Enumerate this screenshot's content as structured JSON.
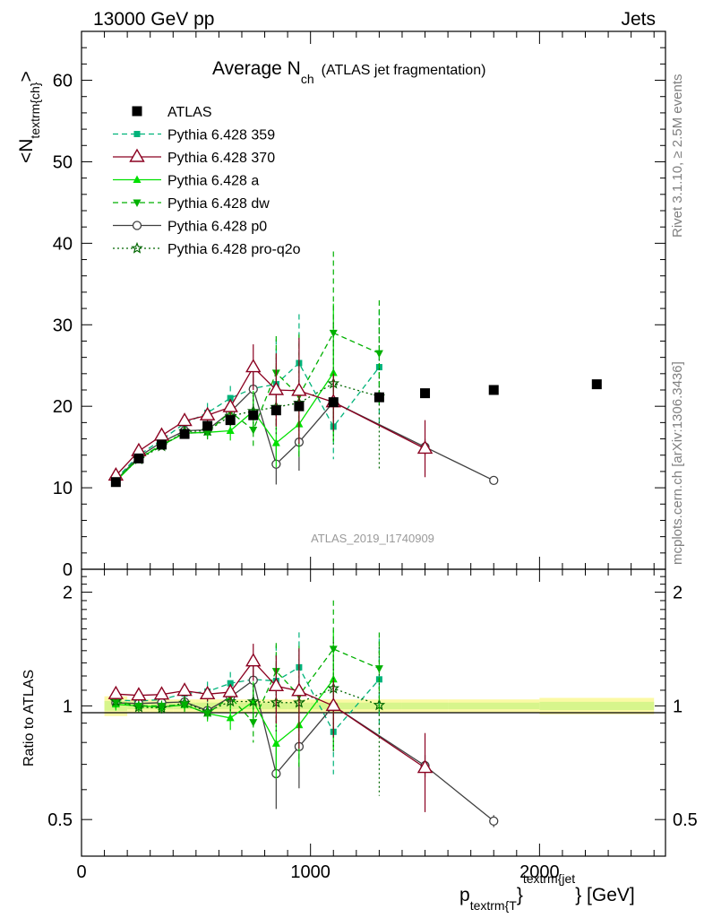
{
  "header": {
    "energy": "13000 GeV pp",
    "category": "Jets"
  },
  "side": {
    "rivet": "Rivet 3.1.10, ≥ 2.5M events",
    "mcplots": "mcplots.cern.ch [arXiv:1306.3436]"
  },
  "watermark": "ATLAS_2019_I1740909",
  "chart_data": [
    {
      "type": "scatter",
      "panel": "main",
      "title_main": "Average N",
      "title_sub": "ch",
      "title_paren": "(ATLAS jet fragmentation)",
      "ylabel_main": "<N",
      "ylabel_sub": "textrm{ch}",
      "ylabel_close": ">",
      "xlim": [
        0,
        2550
      ],
      "ylim": [
        0,
        66
      ],
      "yticks": [
        0,
        10,
        20,
        30,
        40,
        50,
        60
      ],
      "ytick_labels": [
        "0",
        "10",
        "20",
        "30",
        "40",
        "50",
        "60"
      ],
      "legend_position": "top-left",
      "series": [
        {
          "name": "ATLAS",
          "color": "#000000",
          "marker": "square",
          "line": "none",
          "x": [
            150,
            250,
            350,
            450,
            550,
            650,
            750,
            850,
            950,
            1100,
            1300,
            1500,
            1800,
            2250
          ],
          "y": [
            10.7,
            13.6,
            15.3,
            16.6,
            17.6,
            18.3,
            18.9,
            19.5,
            20.0,
            20.5,
            21.1,
            21.6,
            22.0,
            22.7
          ]
        },
        {
          "name": "Pythia 6.428 359",
          "color": "#00b37a",
          "marker": "square-small",
          "line": "dashed",
          "x": [
            150,
            250,
            350,
            450,
            550,
            650,
            750,
            850,
            950,
            1100,
            1300
          ],
          "y": [
            11.1,
            14.0,
            15.9,
            17.9,
            19.2,
            21.0,
            22.2,
            22.7,
            25.3,
            17.5,
            24.8
          ],
          "err": [
            0.5,
            0.5,
            0.6,
            0.8,
            1.2,
            1.5,
            2.5,
            5.5,
            6.0,
            4.0,
            7.0
          ]
        },
        {
          "name": "Pythia 6.428 370",
          "color": "#8b0020",
          "marker": "triangle-open",
          "line": "solid",
          "x": [
            150,
            250,
            350,
            450,
            550,
            650,
            750,
            850,
            950,
            1100,
            1500
          ],
          "y": [
            11.5,
            14.5,
            16.4,
            18.2,
            18.9,
            19.9,
            24.8,
            22.0,
            21.9,
            20.5,
            14.8
          ],
          "err": [
            0.4,
            0.5,
            0.5,
            0.6,
            0.8,
            1.0,
            2.8,
            4.5,
            6.5,
            3.5,
            3.5
          ]
        },
        {
          "name": "Pythia 6.428 a",
          "color": "#00e000",
          "marker": "triangle-filled",
          "line": "solid",
          "x": [
            150,
            250,
            350,
            450,
            550,
            650,
            750,
            850,
            950,
            1100
          ],
          "y": [
            10.8,
            13.6,
            15.2,
            16.7,
            16.8,
            17.0,
            19.4,
            15.5,
            17.8,
            24.1
          ],
          "err": [
            0.4,
            0.4,
            0.5,
            0.6,
            0.8,
            1.2,
            2.5,
            3.0,
            4.0,
            8.5
          ]
        },
        {
          "name": "Pythia 6.428 dw",
          "color": "#00b000",
          "marker": "triangle-down",
          "line": "dashed",
          "x": [
            150,
            250,
            350,
            450,
            550,
            650,
            750,
            850,
            950,
            1100,
            1300
          ],
          "y": [
            11.0,
            13.6,
            15.3,
            16.7,
            16.8,
            19.3,
            17.1,
            24.1,
            21.3,
            29.0,
            26.5
          ],
          "err": [
            0.4,
            0.5,
            0.5,
            0.7,
            0.9,
            1.3,
            2.0,
            4.5,
            7.5,
            10.0,
            6.5
          ]
        },
        {
          "name": "Pythia 6.428 p0",
          "color": "#404040",
          "marker": "circle-open",
          "line": "solid",
          "x": [
            150,
            250,
            350,
            450,
            550,
            650,
            750,
            850,
            950,
            1100,
            1500,
            1800
          ],
          "y": [
            10.9,
            13.8,
            15.6,
            17.0,
            17.1,
            19.3,
            22.1,
            12.9,
            15.6,
            20.5,
            15.0,
            10.9
          ],
          "err": [
            0.4,
            0.5,
            0.5,
            0.6,
            0.8,
            1.0,
            2.0,
            2.5,
            3.5,
            3.5,
            1.0,
            0.4
          ]
        },
        {
          "name": "Pythia 6.428 pro-q2o",
          "color": "#006600",
          "marker": "star",
          "line": "dotted",
          "x": [
            150,
            250,
            350,
            450,
            550,
            650,
            750,
            850,
            950,
            1100,
            1300
          ],
          "y": [
            11.0,
            13.5,
            15.1,
            16.9,
            17.0,
            18.8,
            19.4,
            19.9,
            20.4,
            22.8,
            21.2
          ],
          "err": [
            0.4,
            0.5,
            0.5,
            0.7,
            0.8,
            1.2,
            2.0,
            3.5,
            5.0,
            7.5,
            9.0
          ]
        }
      ]
    },
    {
      "type": "scatter",
      "panel": "ratio",
      "ylabel": "Ratio to ATLAS",
      "xlabel_main": "p",
      "xlabel_sub": "textrm{T",
      "xlabel_brace": "}",
      "xlabel_sup": "textrm{jet",
      "xlabel_end": "} [GeV]",
      "ylim": [
        0.4,
        2.3
      ],
      "yticks": [
        0.5,
        1,
        2
      ],
      "ytick_labels": [
        "0.5",
        "1",
        "2"
      ],
      "xticks": [
        0,
        1000,
        2000
      ],
      "xtick_labels": [
        "0",
        "1000",
        "2000"
      ],
      "reference_band": {
        "x": [
          100,
          200,
          300,
          400,
          500,
          600,
          700,
          800,
          900,
          1000,
          1200,
          1400,
          1600,
          2000,
          2500
        ],
        "inner": [
          0.03,
          0.02,
          0.02,
          0.02,
          0.02,
          0.02,
          0.02,
          0.02,
          0.02,
          0.02,
          0.02,
          0.02,
          0.02,
          0.025,
          0.025
        ],
        "outer": [
          0.06,
          0.04,
          0.04,
          0.04,
          0.04,
          0.04,
          0.04,
          0.04,
          0.04,
          0.04,
          0.04,
          0.04,
          0.04,
          0.05,
          0.05
        ]
      }
    }
  ]
}
